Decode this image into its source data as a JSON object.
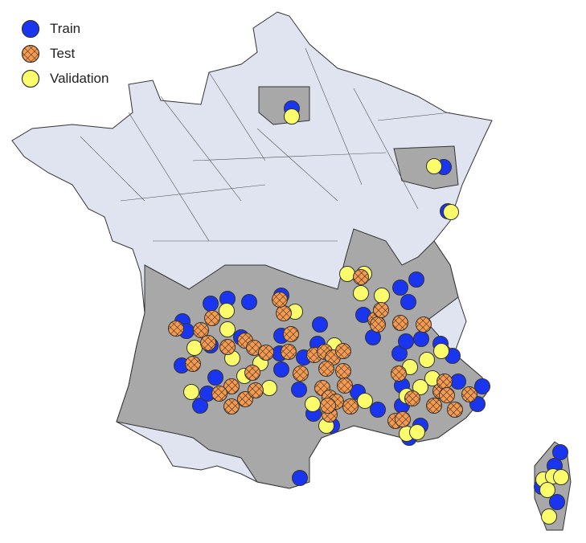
{
  "legend": {
    "items": [
      {
        "label": "Train",
        "color": "#1a35f0",
        "pattern": "solid"
      },
      {
        "label": "Test",
        "color": "#f59a4f",
        "pattern": "crosshatch"
      },
      {
        "label": "Validation",
        "color": "#fafc6b",
        "pattern": "solid"
      }
    ]
  },
  "colors": {
    "region_default": "#e0e4f0",
    "region_highlight": "#a8a8a8",
    "border": "#333333"
  }
}
